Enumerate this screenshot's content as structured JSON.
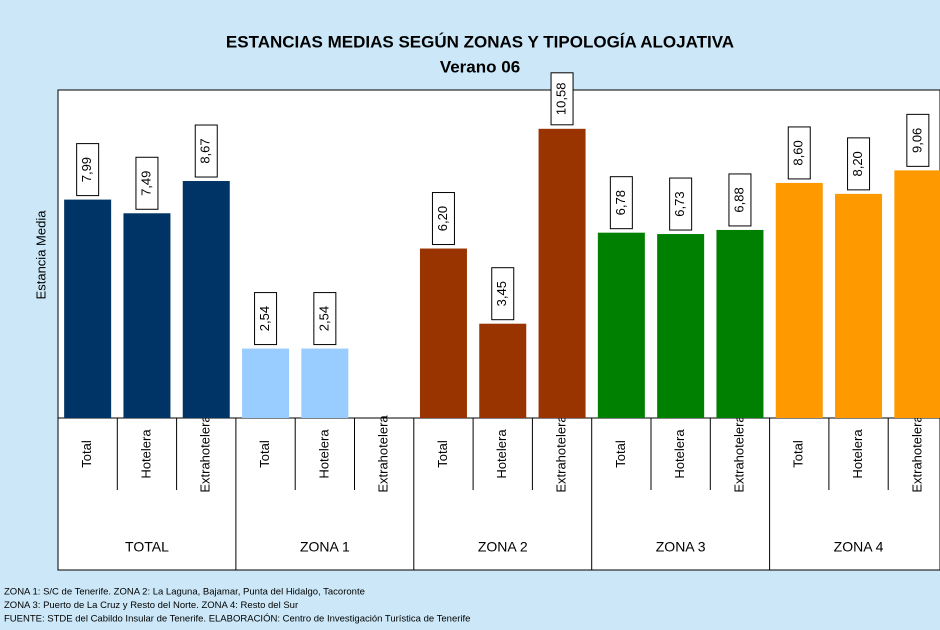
{
  "chart_data": {
    "type": "bar",
    "title": "ESTANCIAS MEDIAS SEGÚN ZONAS Y TIPOLOGÍA ALOJATIVA",
    "subtitle": "Verano 06",
    "y_label": "Estancia Media",
    "categories": [
      "Total",
      "Hotelera",
      "Extrahotelera"
    ],
    "ylim": [
      0,
      12
    ],
    "series": [
      {
        "name": "TOTAL",
        "color": "#003366",
        "values": [
          7.99,
          7.49,
          8.67
        ],
        "value_labels": [
          "7,99",
          "7,49",
          "8,67"
        ]
      },
      {
        "name": "ZONA 1",
        "color": "#99ccff",
        "values": [
          2.54,
          2.54,
          null
        ],
        "value_labels": [
          "2,54",
          "2,54",
          null
        ]
      },
      {
        "name": "ZONA 2",
        "color": "#993300",
        "values": [
          6.2,
          3.45,
          10.58
        ],
        "value_labels": [
          "6,20",
          "3,45",
          "10,58"
        ]
      },
      {
        "name": "ZONA 3",
        "color": "#008000",
        "values": [
          6.78,
          6.73,
          6.88
        ],
        "value_labels": [
          "6,78",
          "6,73",
          "6,88"
        ]
      },
      {
        "name": "ZONA 4",
        "color": "#ff9900",
        "values": [
          8.6,
          8.2,
          9.06
        ],
        "value_labels": [
          "8,60",
          "8,20",
          "9,06"
        ]
      }
    ],
    "notes": [
      "ZONA 1: S/C de Tenerife. ZONA 2: La Laguna, Bajamar, Punta del Hidalgo, Tacoronte",
      "ZONA 3: Puerto de La Cruz y Resto del Norte. ZONA 4: Resto del Sur",
      "FUENTE: STDE del Cabildo Insular de Tenerife. ELABORACIÓN: Centro de Investigación Turística de Tenerife"
    ]
  }
}
